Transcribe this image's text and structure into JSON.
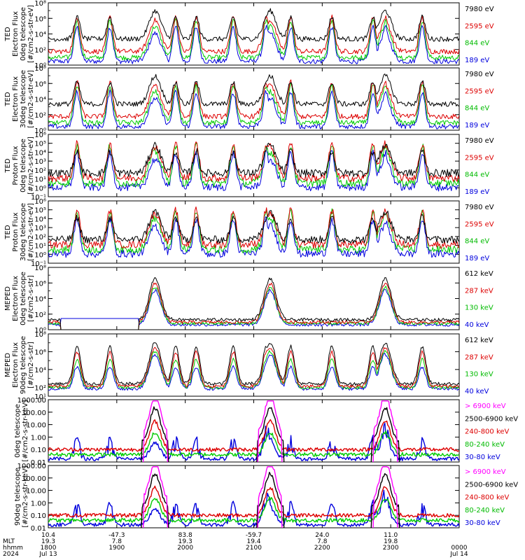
{
  "chart_data": [
    {
      "type": "line",
      "ylabel": [
        "TED",
        "Electron Flux",
        "0deg telescope",
        "[#/cm2-s-str-eV]"
      ],
      "yscale": "log",
      "ylim": [
        1,
        100000000
      ],
      "yticks": [
        {
          "value": 1,
          "label": "10⁰"
        },
        {
          "value": 100,
          "label": "10²"
        },
        {
          "value": 10000,
          "label": "10⁴"
        },
        {
          "value": 1000000,
          "label": "10⁶"
        },
        {
          "value": 100000000,
          "label": "10⁸"
        }
      ],
      "series": [
        {
          "name": "7980 eV",
          "color": "#000000"
        },
        {
          "name": "2595 eV",
          "color": "#dd0000"
        },
        {
          "name": "844 eV",
          "color": "#00cc00"
        },
        {
          "name": "189 eV",
          "color": "#0000dd"
        }
      ]
    },
    {
      "type": "line",
      "ylabel": [
        "TED",
        "Electron Flux",
        "30deg telescope",
        "[#/cm2-s-str-eV]"
      ],
      "yscale": "log",
      "ylim": [
        1,
        100000000
      ],
      "yticks": [
        {
          "value": 1,
          "label": "10⁰"
        },
        {
          "value": 100,
          "label": "10²"
        },
        {
          "value": 10000,
          "label": "10⁴"
        },
        {
          "value": 1000000,
          "label": "10⁶"
        },
        {
          "value": 100000000,
          "label": "10⁸"
        }
      ],
      "series": [
        {
          "name": "7980 eV",
          "color": "#000000"
        },
        {
          "name": "2595 eV",
          "color": "#dd0000"
        },
        {
          "name": "844 eV",
          "color": "#00cc00"
        },
        {
          "name": "189 eV",
          "color": "#0000dd"
        }
      ]
    },
    {
      "type": "line",
      "ylabel": [
        "TED",
        "Proton Flux",
        "0deg telescope",
        "[#/cm2-s-str-eV]"
      ],
      "yscale": "log",
      "ylim": [
        0.1,
        1000000
      ],
      "yticks": [
        {
          "value": 0.1,
          "label": "10⁻¹"
        },
        {
          "value": 1,
          "label": "10⁰"
        },
        {
          "value": 10,
          "label": "10¹"
        },
        {
          "value": 100,
          "label": "10²"
        },
        {
          "value": 1000,
          "label": "10³"
        },
        {
          "value": 10000,
          "label": "10⁴"
        },
        {
          "value": 100000,
          "label": "10⁵"
        },
        {
          "value": 1000000,
          "label": "10⁶"
        }
      ],
      "series": [
        {
          "name": "7980 eV",
          "color": "#000000"
        },
        {
          "name": "2595 eV",
          "color": "#dd0000"
        },
        {
          "name": "844 eV",
          "color": "#00cc00"
        },
        {
          "name": "189 eV",
          "color": "#0000dd"
        }
      ]
    },
    {
      "type": "line",
      "ylabel": [
        "TED",
        "Proton Flux",
        "30deg telescope",
        "[#/cm2-s-str-eV]"
      ],
      "yscale": "log",
      "ylim": [
        0.1,
        1000000
      ],
      "yticks": [
        {
          "value": 0.1,
          "label": "10⁻¹"
        },
        {
          "value": 1,
          "label": "10⁰"
        },
        {
          "value": 10,
          "label": "10¹"
        },
        {
          "value": 100,
          "label": "10²"
        },
        {
          "value": 1000,
          "label": "10³"
        },
        {
          "value": 10000,
          "label": "10⁴"
        },
        {
          "value": 100000,
          "label": "10⁵"
        },
        {
          "value": 1000000,
          "label": "10⁶"
        }
      ],
      "series": [
        {
          "name": "7980 eV",
          "color": "#000000"
        },
        {
          "name": "2595 eV",
          "color": "#dd0000"
        },
        {
          "name": "844 eV",
          "color": "#00cc00"
        },
        {
          "name": "189 eV",
          "color": "#0000dd"
        }
      ]
    },
    {
      "type": "line",
      "ylabel": [
        "MEPED",
        "Electron Flux",
        "0deg telescope",
        "[#/cm2-s-str]"
      ],
      "yscale": "log",
      "ylim": [
        1,
        100000000
      ],
      "yticks": [
        {
          "value": 1,
          "label": "10⁰"
        },
        {
          "value": 100,
          "label": "10²"
        },
        {
          "value": 10000,
          "label": "10⁴"
        },
        {
          "value": 1000000,
          "label": "10⁶"
        },
        {
          "value": 100000000,
          "label": "10⁸"
        }
      ],
      "series": [
        {
          "name": "612 keV",
          "color": "#000000"
        },
        {
          "name": "287 keV",
          "color": "#dd0000"
        },
        {
          "name": "130 keV",
          "color": "#00cc00"
        },
        {
          "name": "40 keV",
          "color": "#0000dd"
        }
      ]
    },
    {
      "type": "line",
      "ylabel": [
        "MEPED",
        "Electron Flux",
        "90deg telescope",
        "[#/cm2-s-str]"
      ],
      "yscale": "log",
      "ylim": [
        10,
        100000000
      ],
      "yticks": [
        {
          "value": 10,
          "label": "10¹"
        },
        {
          "value": 100,
          "label": "10²"
        },
        {
          "value": 10000,
          "label": "10⁴"
        },
        {
          "value": 1000000,
          "label": "10⁶"
        },
        {
          "value": 100000000,
          "label": "10⁸"
        }
      ],
      "series": [
        {
          "name": "612 keV",
          "color": "#000000"
        },
        {
          "name": "287 keV",
          "color": "#dd0000"
        },
        {
          "name": "130 keV",
          "color": "#00cc00"
        },
        {
          "name": "40 keV",
          "color": "#0000dd"
        }
      ]
    },
    {
      "type": "line",
      "ylabel": [
        "0deg telescope",
        "[#/cm2-s-str-keV]"
      ],
      "yscale": "log",
      "ylim": [
        0.01,
        1000
      ],
      "yticks": [
        {
          "value": 0.01,
          "label": "0.01"
        },
        {
          "value": 0.1,
          "label": "0.10"
        },
        {
          "value": 1,
          "label": "1.00"
        },
        {
          "value": 10,
          "label": "10.00"
        },
        {
          "value": 100,
          "label": "100.00"
        },
        {
          "value": 1000,
          "label": "1000.00"
        }
      ],
      "series": [
        {
          "name": "> 6900 keV",
          "color": "#ff00ff"
        },
        {
          "name": "2500-6900 keV",
          "color": "#000000"
        },
        {
          "name": "240-800 keV",
          "color": "#dd0000"
        },
        {
          "name": "80-240 keV",
          "color": "#00cc00"
        },
        {
          "name": "30-80 keV",
          "color": "#0000dd"
        }
      ]
    },
    {
      "type": "line",
      "ylabel": [
        "90deg telescope",
        "[#/cm2-s-str-keV]"
      ],
      "yscale": "log",
      "ylim": [
        0.01,
        1000
      ],
      "yticks": [
        {
          "value": 0.01,
          "label": "0.01"
        },
        {
          "value": 0.1,
          "label": "0.10"
        },
        {
          "value": 1,
          "label": "1.00"
        },
        {
          "value": 10,
          "label": "10.00"
        },
        {
          "value": 100,
          "label": "100.00"
        },
        {
          "value": 1000,
          "label": "1000.00"
        }
      ],
      "series": [
        {
          "name": "> 6900 keV",
          "color": "#ff00ff"
        },
        {
          "name": "2500-6900 keV",
          "color": "#000000"
        },
        {
          "name": "240-800 keV",
          "color": "#dd0000"
        },
        {
          "name": "80-240 keV",
          "color": "#00cc00"
        },
        {
          "name": "30-80 keV",
          "color": "#0000dd"
        }
      ]
    }
  ],
  "time_axis": {
    "range_hhmm": [
      "1800",
      "0000"
    ],
    "row_labels": [
      "",
      "MLT",
      "hhmm",
      "2024"
    ],
    "ticks": [
      {
        "hhmm": "1800",
        "values": [
          "10.4",
          "19.3",
          "1800",
          "Jul 13"
        ]
      },
      {
        "hhmm": "1900",
        "values": [
          "-47.3",
          "7.8",
          "1900",
          ""
        ]
      },
      {
        "hhmm": "2000",
        "values": [
          "83.8",
          "19.3",
          "2000",
          ""
        ]
      },
      {
        "hhmm": "2100",
        "values": [
          "-59.7",
          "19.4",
          "2100",
          ""
        ]
      },
      {
        "hhmm": "2200",
        "values": [
          "24.0",
          "7.8",
          "2200",
          ""
        ]
      },
      {
        "hhmm": "2300",
        "values": [
          "11.0",
          "19.8",
          "2300",
          ""
        ]
      },
      {
        "hhmm": "0000",
        "values": [
          "",
          "",
          "0000",
          "Jul 14"
        ]
      }
    ]
  }
}
